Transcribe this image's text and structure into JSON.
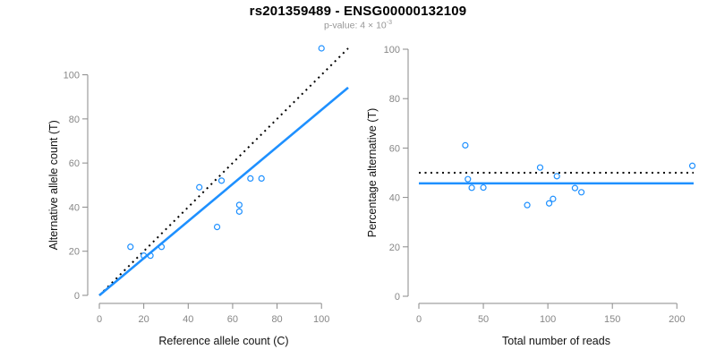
{
  "header": {
    "title": "rs201359489 - ENSG00000132109",
    "subtitle_base": "p-value: 4 × 10",
    "subtitle_exponent": "-3"
  },
  "colors": {
    "accent_blue": "#1E90FF",
    "dotted_black": "#000000",
    "axis_gray": "#8a8a8a",
    "tick_text_gray": "#878787",
    "title_black": "#000000",
    "subtitle_gray": "#969696"
  },
  "chart_data": {
    "figure_title": "rs201359489 - ENSG00000132109",
    "figure_subtitle": "p-value: 4 × 10^-3",
    "charts": [
      {
        "id": "allele-counts",
        "type": "scatter",
        "xlabel": "Reference allele count (C)",
        "ylabel": "Alternative allele count (T)",
        "xticks": [
          0,
          20,
          40,
          60,
          80,
          100
        ],
        "yticks": [
          0,
          20,
          40,
          60,
          80,
          100
        ],
        "xlim": [
          0,
          112
        ],
        "ylim": [
          0,
          112
        ],
        "grid": false,
        "marker": {
          "shape": "open-circle",
          "radius": 3,
          "color": "#1E90FF"
        },
        "points": [
          [
            14,
            22
          ],
          [
            20,
            18
          ],
          [
            23,
            18
          ],
          [
            28,
            22
          ],
          [
            45,
            49
          ],
          [
            53,
            31
          ],
          [
            55,
            52
          ],
          [
            63,
            38
          ],
          [
            63,
            41
          ],
          [
            68,
            53
          ],
          [
            73,
            53
          ],
          [
            100,
            112
          ]
        ],
        "lines": [
          {
            "name": "identity-line",
            "style": "dotted",
            "color": "#000000",
            "width": 2,
            "from": [
              0,
              0
            ],
            "to": [
              112,
              112
            ]
          },
          {
            "name": "fit-line",
            "style": "solid",
            "color": "#1E90FF",
            "width": 2.6,
            "from": [
              0,
              0
            ],
            "to": [
              112,
              94.2
            ]
          }
        ]
      },
      {
        "id": "percentage",
        "type": "scatter",
        "xlabel": "Total number of reads",
        "ylabel": "Percentage alternative (T)",
        "xticks": [
          0,
          50,
          100,
          150,
          200
        ],
        "yticks": [
          0,
          20,
          40,
          60,
          80,
          100
        ],
        "xlim": [
          0,
          213
        ],
        "ylim": [
          0,
          100
        ],
        "grid": false,
        "marker": {
          "shape": "open-circle",
          "radius": 3,
          "color": "#1E90FF"
        },
        "points": [
          [
            36,
            61.1
          ],
          [
            38,
            47.4
          ],
          [
            41,
            43.9
          ],
          [
            50,
            44.0
          ],
          [
            84,
            36.9
          ],
          [
            94,
            52.1
          ],
          [
            101,
            37.6
          ],
          [
            104,
            39.4
          ],
          [
            107,
            48.6
          ],
          [
            121,
            43.8
          ],
          [
            126,
            42.1
          ],
          [
            212,
            52.8
          ]
        ],
        "lines": [
          {
            "name": "expected-50pct-line",
            "style": "dotted",
            "color": "#000000",
            "width": 2,
            "from": [
              0,
              50
            ],
            "to": [
              213,
              50
            ]
          },
          {
            "name": "mean-pct-line",
            "style": "solid",
            "color": "#1E90FF",
            "width": 2.6,
            "from": [
              0,
              45.7
            ],
            "to": [
              213,
              45.7
            ]
          }
        ]
      }
    ]
  }
}
